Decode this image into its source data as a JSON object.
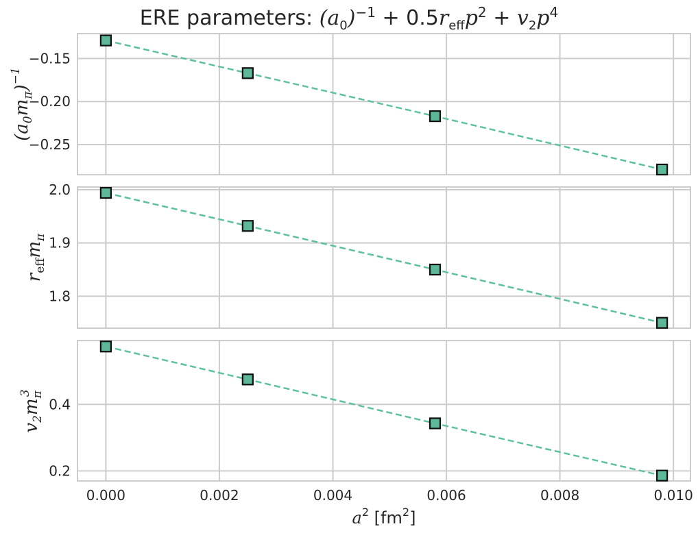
{
  "title_prefix": "ERE parameters: ",
  "colors": {
    "line": "#5ec19e",
    "marker_fill": "#5cb897",
    "marker_edge": "#111111",
    "grid": "#cccccc",
    "frame": "#cccccc"
  },
  "chart_data": [
    {
      "type": "line",
      "title": "ERE parameters: (a0)^-1 + 0.5 r_eff p^2 + v_2 p^4",
      "ylabel": "(a0 mπ)^-1",
      "x": [
        0.0,
        0.0025,
        0.0058,
        0.0098
      ],
      "y": [
        -0.129,
        -0.167,
        -0.217,
        -0.279
      ],
      "xlim": [
        -0.0005,
        0.0103
      ],
      "ylim": [
        -0.285,
        -0.121
      ],
      "yticks": [
        -0.15,
        -0.2,
        -0.25
      ],
      "ytick_labels": [
        "−0.15",
        "−0.20",
        "−0.25"
      ],
      "line_style": "dashed",
      "marker": "square",
      "grid": true
    },
    {
      "type": "line",
      "ylabel": "r_eff mπ",
      "x": [
        0.0,
        0.0025,
        0.0058,
        0.0098
      ],
      "y": [
        1.994,
        1.932,
        1.85,
        1.75
      ],
      "xlim": [
        -0.0005,
        0.0103
      ],
      "ylim": [
        1.74,
        2.005
      ],
      "yticks": [
        1.8,
        1.9,
        2.0
      ],
      "ytick_labels": [
        "1.8",
        "1.9",
        "2.0"
      ],
      "line_style": "dashed",
      "marker": "square",
      "grid": true
    },
    {
      "type": "line",
      "ylabel": "v_2 mπ^3",
      "xlabel": "a^2 [fm^2]",
      "x": [
        0.0,
        0.0025,
        0.0058,
        0.0098
      ],
      "y": [
        0.574,
        0.475,
        0.343,
        0.186
      ],
      "xlim": [
        -0.0005,
        0.0103
      ],
      "ylim": [
        0.17,
        0.592
      ],
      "yticks": [
        0.2,
        0.4
      ],
      "ytick_labels": [
        "0.2",
        "0.4"
      ],
      "xticks": [
        0.0,
        0.002,
        0.004,
        0.006,
        0.008,
        0.01
      ],
      "xtick_labels": [
        "0.000",
        "0.002",
        "0.004",
        "0.006",
        "0.008",
        "0.010"
      ],
      "line_style": "dashed",
      "marker": "square",
      "grid": true
    }
  ]
}
